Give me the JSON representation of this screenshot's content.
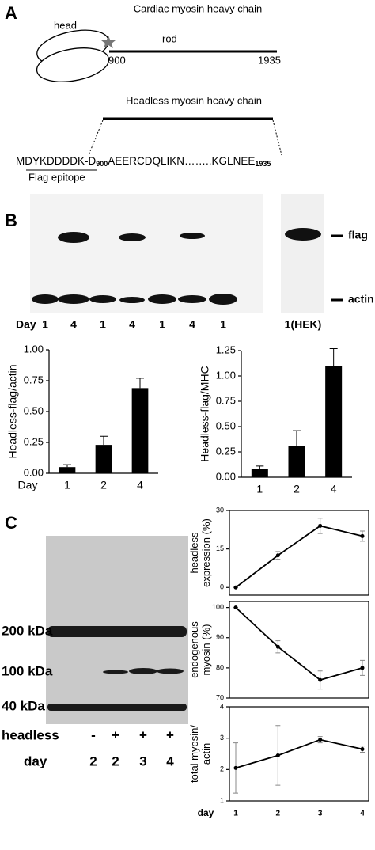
{
  "panel_labels": [
    "A",
    "B",
    "C"
  ],
  "diagram": {
    "title": "Cardiac myosin heavy chain",
    "head": "head",
    "rod": "rod",
    "start": "900",
    "end": "1935",
    "headless_title": "Headless myosin heavy chain",
    "sequence": {
      "prefix": "MDYKDDDDK-D",
      "sub1": "900",
      "middle": "AEERCDQLIKN……..KGLNEE",
      "sub2": "1935"
    },
    "flag_label": "Flag epitope"
  },
  "blot_b": {
    "bands": [
      "flag",
      "actin"
    ],
    "day_label": "Day",
    "lanes": [
      "1",
      "4",
      "1",
      "4",
      "1",
      "4",
      "1"
    ],
    "hek_lane": "1(HEK)"
  },
  "blot_c": {
    "markers": [
      "200 kDa",
      "100 kDa",
      "40 kDa"
    ],
    "row_labels": [
      "headless",
      "day"
    ],
    "headless": [
      "-",
      "+",
      "+",
      "+"
    ],
    "day": [
      "2",
      "2",
      "3",
      "4"
    ]
  },
  "chart_data": [
    {
      "type": "bar",
      "ylabel": [
        "Headless-flag/actin"
      ],
      "xlabel": "Day",
      "categories": [
        "1",
        "2",
        "4"
      ],
      "values": [
        0.05,
        0.23,
        0.69
      ],
      "errors": [
        0.02,
        0.07,
        0.08
      ],
      "color": "#000000",
      "ylim": [
        0,
        1
      ],
      "yticks": [
        {
          "value": 0,
          "label": "0.00"
        },
        {
          "value": 0.25,
          "label": "0.25"
        },
        {
          "value": 0.5,
          "label": "0.50"
        },
        {
          "value": 0.75,
          "label": "0.75"
        },
        {
          "value": 1,
          "label": "1.00"
        }
      ]
    },
    {
      "type": "bar",
      "ylabel": [
        "Headless-flag/MHC"
      ],
      "categories": [
        "1",
        "2",
        "4"
      ],
      "values": [
        0.08,
        0.31,
        1.1
      ],
      "errors": [
        0.03,
        0.15,
        0.17
      ],
      "color": "#000000",
      "ylim": [
        0,
        1.25
      ],
      "yticks": [
        {
          "value": 0,
          "label": "0.00"
        },
        {
          "value": 0.25,
          "label": "0.25"
        },
        {
          "value": 0.5,
          "label": "0.50"
        },
        {
          "value": 0.75,
          "label": "0.75"
        },
        {
          "value": 1,
          "label": "1.00"
        },
        {
          "value": 1.25,
          "label": "1.25"
        }
      ]
    },
    {
      "type": "line",
      "ylabel": [
        "headless",
        "expression (%)"
      ],
      "categories": [
        null,
        null,
        null,
        null
      ],
      "values": [
        0,
        12.5,
        24,
        20
      ],
      "errors": [
        0,
        1.5,
        3,
        2
      ],
      "color": "#000000",
      "ylim": [
        -3,
        30
      ],
      "yticks": [
        0,
        15,
        30
      ]
    },
    {
      "type": "line",
      "ylabel": [
        "endogenous",
        "myosin (%)"
      ],
      "categories": [
        null,
        null,
        null,
        null
      ],
      "values": [
        100,
        87,
        76,
        80
      ],
      "errors": [
        0,
        2,
        3,
        2.5
      ],
      "color": "#000000",
      "ylim": [
        70,
        102
      ],
      "yticks": [
        70,
        80,
        90,
        100
      ]
    },
    {
      "type": "line",
      "ylabel": [
        "total myosin/",
        "actin"
      ],
      "xlabel": "day",
      "categories": [
        "1",
        "2",
        "3",
        "4"
      ],
      "values": [
        2.05,
        2.45,
        2.95,
        2.65
      ],
      "errors": [
        0.8,
        0.95,
        0.1,
        0.1
      ],
      "color": "#000000",
      "ylim": [
        1,
        4
      ],
      "yticks": [
        1,
        2,
        3,
        4
      ]
    }
  ]
}
